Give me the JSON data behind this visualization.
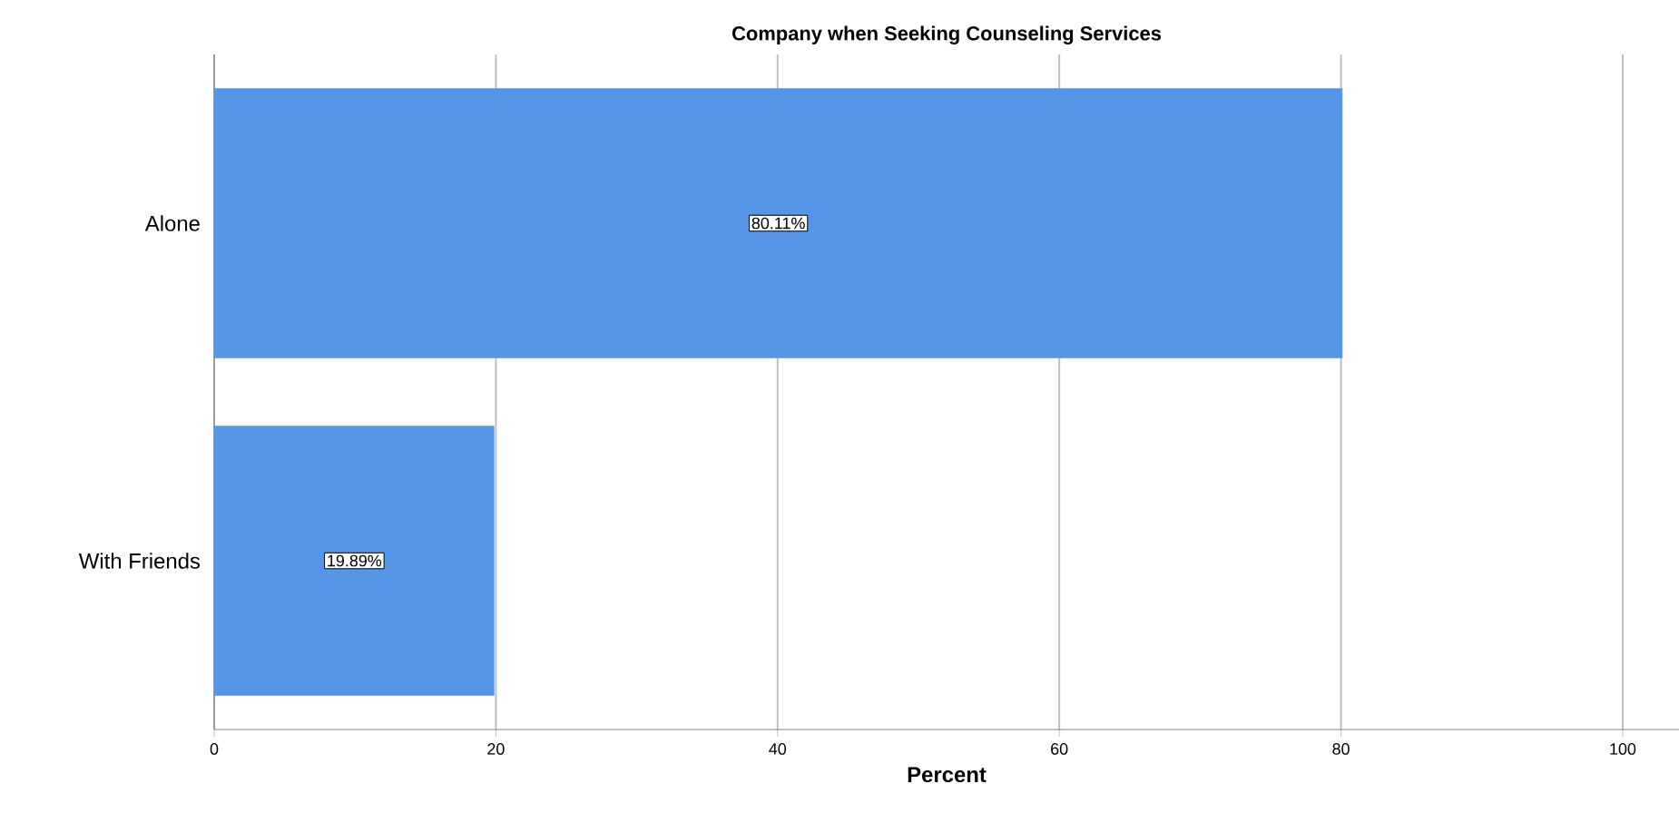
{
  "chart_data": {
    "type": "bar",
    "orientation": "horizontal",
    "title": "Company when Seeking Counseling Services",
    "xlabel": "Percent",
    "categories": [
      "Alone",
      "With Friends"
    ],
    "values": [
      80.11,
      19.89
    ],
    "value_labels": [
      "80.11%",
      "19.89%"
    ],
    "color": "#5596e6",
    "xlim": [
      0,
      104
    ],
    "xticks": [
      0,
      20,
      40,
      60,
      80,
      100
    ],
    "grid": "x"
  }
}
